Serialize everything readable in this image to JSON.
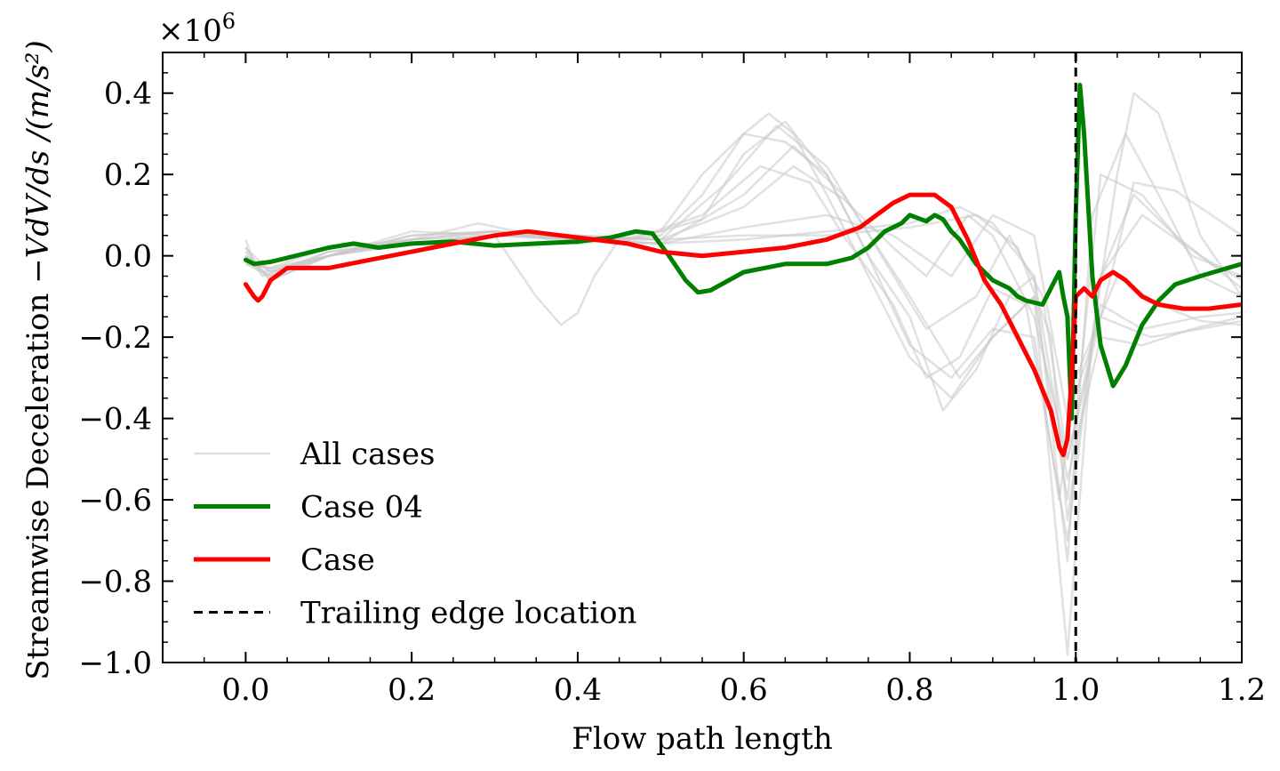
{
  "chart_data": {
    "type": "line",
    "title": "",
    "xlabel": "Flow path length",
    "ylabel": "Streamwise Deceleration",
    "ylabel_math": "−VdV/ds /(m/s²)",
    "y_multiplier": "×10",
    "y_multiplier_exp": "6",
    "xlim": [
      -0.1,
      1.2
    ],
    "ylim": [
      -1.0,
      0.5
    ],
    "xticks": [
      0.0,
      0.2,
      0.4,
      0.6,
      0.8,
      1.0,
      1.2
    ],
    "xtick_labels": [
      "0.0",
      "0.2",
      "0.4",
      "0.6",
      "0.8",
      "1.0",
      "1.2"
    ],
    "yticks": [
      0.4,
      0.2,
      0.0,
      -0.2,
      -0.4,
      -0.6,
      -0.8,
      -1.0
    ],
    "ytick_labels": [
      "0.4",
      "0.2",
      "0.0",
      "−0.2",
      "−0.4",
      "−0.6",
      "−0.8",
      "−1.0"
    ],
    "grid": false,
    "legend_placement": "lower-left",
    "trailing_edge_x": 1.0,
    "colors": {
      "all_cases": "#c8c8c8",
      "case04": "#008000",
      "case": "#ff0000",
      "trailing_edge": "#000000"
    },
    "legend": [
      {
        "label": "All cases",
        "style": "all"
      },
      {
        "label": "Case 04",
        "style": "case04"
      },
      {
        "label": "Case",
        "style": "case"
      },
      {
        "label": "Trailing edge location",
        "style": "te"
      }
    ],
    "series": [
      {
        "name": "Case 04",
        "style": "case04",
        "x": [
          0.0,
          0.01,
          0.03,
          0.06,
          0.1,
          0.13,
          0.16,
          0.2,
          0.25,
          0.3,
          0.35,
          0.4,
          0.44,
          0.47,
          0.49,
          0.51,
          0.53,
          0.545,
          0.56,
          0.6,
          0.65,
          0.7,
          0.73,
          0.75,
          0.77,
          0.79,
          0.8,
          0.82,
          0.83,
          0.84,
          0.85,
          0.86,
          0.88,
          0.9,
          0.92,
          0.93,
          0.94,
          0.96,
          0.98,
          0.985,
          0.99,
          0.995,
          1.0,
          1.005,
          1.01,
          1.02,
          1.03,
          1.045,
          1.06,
          1.08,
          1.1,
          1.12,
          1.15,
          1.2
        ],
        "values": [
          -0.01,
          -0.02,
          -0.015,
          0.0,
          0.02,
          0.03,
          0.02,
          0.03,
          0.035,
          0.025,
          0.03,
          0.035,
          0.045,
          0.06,
          0.055,
          0.0,
          -0.06,
          -0.09,
          -0.085,
          -0.04,
          -0.02,
          -0.02,
          -0.005,
          0.02,
          0.06,
          0.08,
          0.1,
          0.085,
          0.1,
          0.09,
          0.06,
          0.04,
          -0.02,
          -0.06,
          -0.08,
          -0.1,
          -0.11,
          -0.12,
          -0.04,
          -0.1,
          -0.15,
          -0.4,
          0.1,
          0.42,
          0.3,
          -0.05,
          -0.22,
          -0.32,
          -0.27,
          -0.17,
          -0.11,
          -0.07,
          -0.05,
          -0.02
        ]
      },
      {
        "name": "Case",
        "style": "case",
        "x": [
          0.0,
          0.01,
          0.015,
          0.02,
          0.03,
          0.05,
          0.07,
          0.1,
          0.15,
          0.2,
          0.25,
          0.3,
          0.34,
          0.38,
          0.42,
          0.46,
          0.5,
          0.55,
          0.6,
          0.65,
          0.7,
          0.74,
          0.76,
          0.78,
          0.8,
          0.83,
          0.85,
          0.87,
          0.89,
          0.91,
          0.93,
          0.95,
          0.97,
          0.98,
          0.985,
          0.99,
          0.995,
          1.0,
          1.01,
          1.02,
          1.03,
          1.045,
          1.06,
          1.08,
          1.1,
          1.13,
          1.16,
          1.2
        ],
        "values": [
          -0.07,
          -0.1,
          -0.11,
          -0.1,
          -0.06,
          -0.03,
          -0.03,
          -0.03,
          -0.01,
          0.01,
          0.03,
          0.05,
          0.06,
          0.05,
          0.04,
          0.03,
          0.01,
          0.0,
          0.01,
          0.02,
          0.04,
          0.07,
          0.1,
          0.13,
          0.15,
          0.15,
          0.12,
          0.04,
          -0.06,
          -0.12,
          -0.2,
          -0.28,
          -0.38,
          -0.47,
          -0.49,
          -0.45,
          -0.3,
          -0.1,
          -0.08,
          -0.1,
          -0.06,
          -0.04,
          -0.06,
          -0.1,
          -0.12,
          -0.13,
          -0.13,
          -0.12
        ]
      }
    ],
    "background_series": [
      {
        "name": "",
        "style": "all",
        "x": [
          0.0,
          0.01,
          0.03,
          0.1,
          0.2,
          0.3,
          0.35,
          0.38,
          0.4,
          0.42,
          0.45,
          0.5,
          0.55,
          0.6,
          0.65,
          0.7,
          0.75,
          0.8,
          0.85,
          0.9,
          0.95,
          0.98,
          1.0,
          1.05,
          1.1,
          1.15,
          1.2
        ],
        "values": [
          0.04,
          -0.02,
          -0.03,
          0.0,
          0.03,
          0.05,
          -0.1,
          -0.17,
          -0.14,
          -0.05,
          0.04,
          0.06,
          0.09,
          0.25,
          0.33,
          0.2,
          0.0,
          -0.22,
          -0.3,
          -0.18,
          -0.2,
          -0.6,
          -0.3,
          -0.05,
          -0.12,
          -0.16,
          -0.17
        ]
      },
      {
        "name": "",
        "style": "all",
        "x": [
          0.0,
          0.02,
          0.1,
          0.2,
          0.3,
          0.4,
          0.5,
          0.55,
          0.6,
          0.63,
          0.66,
          0.7,
          0.75,
          0.8,
          0.85,
          0.9,
          0.95,
          0.99,
          1.02,
          1.05,
          1.07,
          1.1,
          1.15,
          1.2
        ],
        "values": [
          0.0,
          -0.05,
          0.0,
          0.05,
          0.06,
          0.03,
          0.05,
          0.15,
          0.3,
          0.35,
          0.3,
          0.15,
          -0.05,
          -0.25,
          -0.35,
          -0.2,
          -0.1,
          -0.98,
          -0.2,
          0.2,
          0.4,
          0.35,
          0.05,
          -0.1
        ]
      },
      {
        "name": "",
        "style": "all",
        "x": [
          0.0,
          0.02,
          0.1,
          0.2,
          0.3,
          0.4,
          0.5,
          0.55,
          0.6,
          0.65,
          0.7,
          0.75,
          0.8,
          0.84,
          0.88,
          0.92,
          0.95,
          0.99,
          1.02,
          1.06,
          1.1,
          1.15,
          1.2
        ],
        "values": [
          0.02,
          -0.04,
          0.0,
          0.06,
          0.05,
          0.04,
          0.06,
          0.2,
          0.3,
          0.28,
          0.2,
          0.0,
          -0.15,
          -0.38,
          -0.28,
          -0.1,
          -0.05,
          -0.75,
          0.1,
          0.3,
          0.15,
          -0.05,
          -0.1
        ]
      },
      {
        "name": "",
        "style": "all",
        "x": [
          0.0,
          0.03,
          0.1,
          0.2,
          0.28,
          0.35,
          0.45,
          0.55,
          0.62,
          0.68,
          0.72,
          0.78,
          0.82,
          0.86,
          0.9,
          0.94,
          0.99,
          1.03,
          1.07,
          1.12,
          1.2
        ],
        "values": [
          -0.02,
          -0.03,
          0.02,
          0.04,
          0.08,
          0.05,
          0.03,
          0.1,
          0.22,
          0.18,
          0.05,
          -0.12,
          -0.3,
          -0.25,
          -0.08,
          -0.12,
          -0.7,
          -0.05,
          0.15,
          0.05,
          -0.08
        ]
      },
      {
        "name": "",
        "style": "all",
        "x": [
          0.0,
          0.03,
          0.1,
          0.2,
          0.3,
          0.4,
          0.5,
          0.6,
          0.66,
          0.72,
          0.78,
          0.82,
          0.87,
          0.9,
          0.95,
          0.99,
          1.03,
          1.08,
          1.15,
          1.2
        ],
        "values": [
          0.0,
          -0.06,
          0.0,
          0.04,
          0.05,
          0.05,
          0.04,
          0.12,
          0.22,
          0.14,
          0.02,
          -0.05,
          0.1,
          0.05,
          -0.15,
          -0.5,
          -0.12,
          -0.18,
          -0.15,
          -0.14
        ]
      },
      {
        "name": "",
        "style": "all",
        "x": [
          0.0,
          0.03,
          0.1,
          0.2,
          0.3,
          0.4,
          0.5,
          0.6,
          0.66,
          0.72,
          0.8,
          0.86,
          0.9,
          0.95,
          0.99,
          1.03,
          1.08,
          1.14,
          1.2
        ],
        "values": [
          -0.01,
          -0.05,
          0.01,
          0.03,
          0.05,
          0.04,
          0.03,
          0.15,
          0.27,
          0.15,
          -0.1,
          -0.3,
          -0.2,
          -0.1,
          -0.6,
          0.2,
          0.15,
          0.0,
          -0.05
        ]
      },
      {
        "name": "",
        "style": "all",
        "x": [
          0.0,
          0.03,
          0.1,
          0.2,
          0.3,
          0.4,
          0.5,
          0.6,
          0.7,
          0.78,
          0.85,
          0.9,
          0.95,
          0.99,
          1.03,
          1.07,
          1.12,
          1.2
        ],
        "values": [
          0.0,
          -0.04,
          0.0,
          0.05,
          0.06,
          0.04,
          0.03,
          0.07,
          0.1,
          0.05,
          -0.05,
          0.1,
          0.05,
          -0.4,
          -0.15,
          0.18,
          0.16,
          0.05
        ]
      },
      {
        "name": "",
        "style": "all",
        "x": [
          0.0,
          0.03,
          0.1,
          0.2,
          0.3,
          0.4,
          0.5,
          0.6,
          0.7,
          0.8,
          0.86,
          0.9,
          0.95,
          0.99,
          1.03,
          1.08,
          1.14,
          1.2
        ],
        "values": [
          0.02,
          -0.04,
          0.01,
          0.04,
          0.06,
          0.04,
          0.03,
          0.04,
          0.06,
          0.08,
          0.12,
          0.08,
          -0.05,
          -0.55,
          -0.2,
          -0.22,
          -0.18,
          -0.15
        ]
      },
      {
        "name": "",
        "style": "all",
        "x": [
          0.0,
          0.03,
          0.1,
          0.2,
          0.3,
          0.4,
          0.5,
          0.6,
          0.7,
          0.8,
          0.88,
          0.93,
          0.97,
          0.99,
          1.03,
          1.08,
          1.15,
          1.2
        ],
        "values": [
          -0.02,
          -0.05,
          0.0,
          0.03,
          0.05,
          0.05,
          0.04,
          0.05,
          0.05,
          0.07,
          0.1,
          0.02,
          -0.2,
          -0.65,
          -0.05,
          0.1,
          0.0,
          -0.06
        ]
      },
      {
        "name": "",
        "style": "all",
        "x": [
          0.0,
          0.03,
          0.1,
          0.2,
          0.3,
          0.4,
          0.5,
          0.58,
          0.64,
          0.7,
          0.76,
          0.82,
          0.88,
          0.92,
          0.96,
          0.99,
          1.03,
          1.09,
          1.15,
          1.2
        ],
        "values": [
          0.01,
          -0.06,
          0.0,
          0.04,
          0.06,
          0.04,
          0.04,
          0.18,
          0.32,
          0.22,
          0.02,
          -0.18,
          -0.1,
          0.05,
          -0.1,
          -0.5,
          -0.15,
          -0.2,
          -0.18,
          -0.16
        ]
      }
    ]
  }
}
